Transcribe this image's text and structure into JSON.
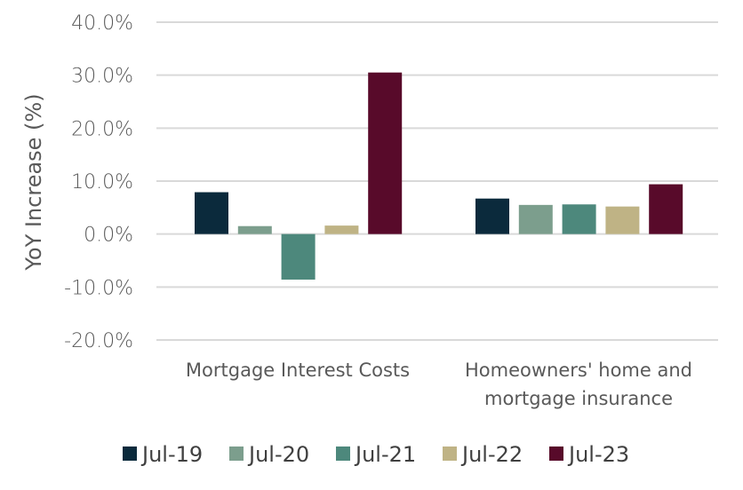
{
  "chart_data": {
    "type": "bar",
    "categories": [
      [
        "Mortgage Interest Costs"
      ],
      [
        "Homeowners' home and",
        "mortgage insurance"
      ]
    ],
    "series": [
      {
        "name": "Jul-19",
        "color": "#0b2a3c",
        "values": [
          7.9,
          6.7
        ]
      },
      {
        "name": "Jul-20",
        "color": "#7c9e8d",
        "values": [
          1.5,
          5.5
        ]
      },
      {
        "name": "Jul-21",
        "color": "#4d887c",
        "values": [
          -8.6,
          5.6
        ]
      },
      {
        "name": "Jul-22",
        "color": "#bfb385",
        "values": [
          1.6,
          5.2
        ]
      },
      {
        "name": "Jul-23",
        "color": "#580a2a",
        "values": [
          30.5,
          9.4
        ]
      }
    ],
    "ylabel": "YoY Increase (%)",
    "ylim": [
      -20,
      40
    ],
    "yticks": [
      "40.0%",
      "30.0%",
      "20.0%",
      "10.0%",
      "0.0%",
      "-10.0%",
      "-20.0%"
    ],
    "legend_position": "bottom",
    "grid": true
  }
}
